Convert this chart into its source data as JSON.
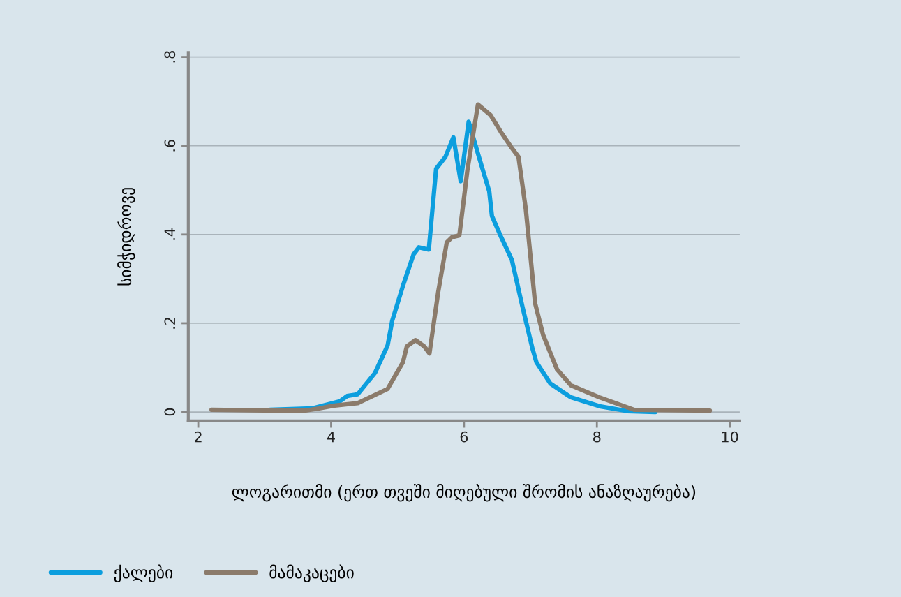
{
  "chart_data": {
    "type": "line",
    "xlabel": "ლოგარითმი (ერთ თვეში მიღებული შრომის ანაზღაურება)",
    "ylabel": "სიმჭიდროვე",
    "xlim": [
      1.85,
      10.15
    ],
    "xticks": [
      2,
      4,
      6,
      8,
      10
    ],
    "ylim": [
      -0.02,
      0.81
    ],
    "yticks": [
      0,
      {
        "value": 0.2,
        "label": ".2"
      },
      {
        "value": 0.4,
        "label": ".4"
      },
      {
        "value": 0.6,
        "label": ".6"
      },
      {
        "value": 0.8,
        "label": ".8"
      }
    ],
    "grid": "y",
    "legend": "bottom left",
    "marker": "none",
    "line_style": "solid",
    "series": [
      {
        "name": "ქალები",
        "color": "#0c9ede",
        "x": [
          3.08,
          3.71,
          4.13,
          4.24,
          4.4,
          4.66,
          4.85,
          4.92,
          5.08,
          5.24,
          5.32,
          5.47,
          5.58,
          5.72,
          5.84,
          5.95,
          6.07,
          6.24,
          6.38,
          6.42,
          6.56,
          6.72,
          6.88,
          7.03,
          7.09,
          7.3,
          7.61,
          8.04,
          8.46,
          8.88
        ],
        "values": [
          0.005,
          0.008,
          0.024,
          0.036,
          0.04,
          0.088,
          0.15,
          0.206,
          0.284,
          0.355,
          0.371,
          0.366,
          0.548,
          0.575,
          0.619,
          0.52,
          0.654,
          0.567,
          0.497,
          0.442,
          0.394,
          0.343,
          0.237,
          0.143,
          0.112,
          0.064,
          0.033,
          0.013,
          0.002,
          0.0
        ]
      },
      {
        "name": "მამაკაცები",
        "color": "#8b7b6b",
        "x": [
          2.2,
          3.18,
          3.6,
          3.82,
          4.03,
          4.4,
          4.85,
          5.08,
          5.14,
          5.27,
          5.4,
          5.48,
          5.61,
          5.74,
          5.82,
          5.93,
          6.05,
          6.21,
          6.4,
          6.56,
          6.7,
          6.82,
          6.93,
          7.07,
          7.19,
          7.4,
          7.61,
          8.04,
          8.56,
          9.7
        ],
        "values": [
          0.005,
          0.003,
          0.003,
          0.008,
          0.014,
          0.02,
          0.052,
          0.112,
          0.148,
          0.162,
          0.148,
          0.132,
          0.269,
          0.382,
          0.394,
          0.398,
          0.544,
          0.693,
          0.669,
          0.63,
          0.599,
          0.575,
          0.457,
          0.245,
          0.174,
          0.096,
          0.06,
          0.033,
          0.005,
          0.003
        ]
      }
    ]
  }
}
